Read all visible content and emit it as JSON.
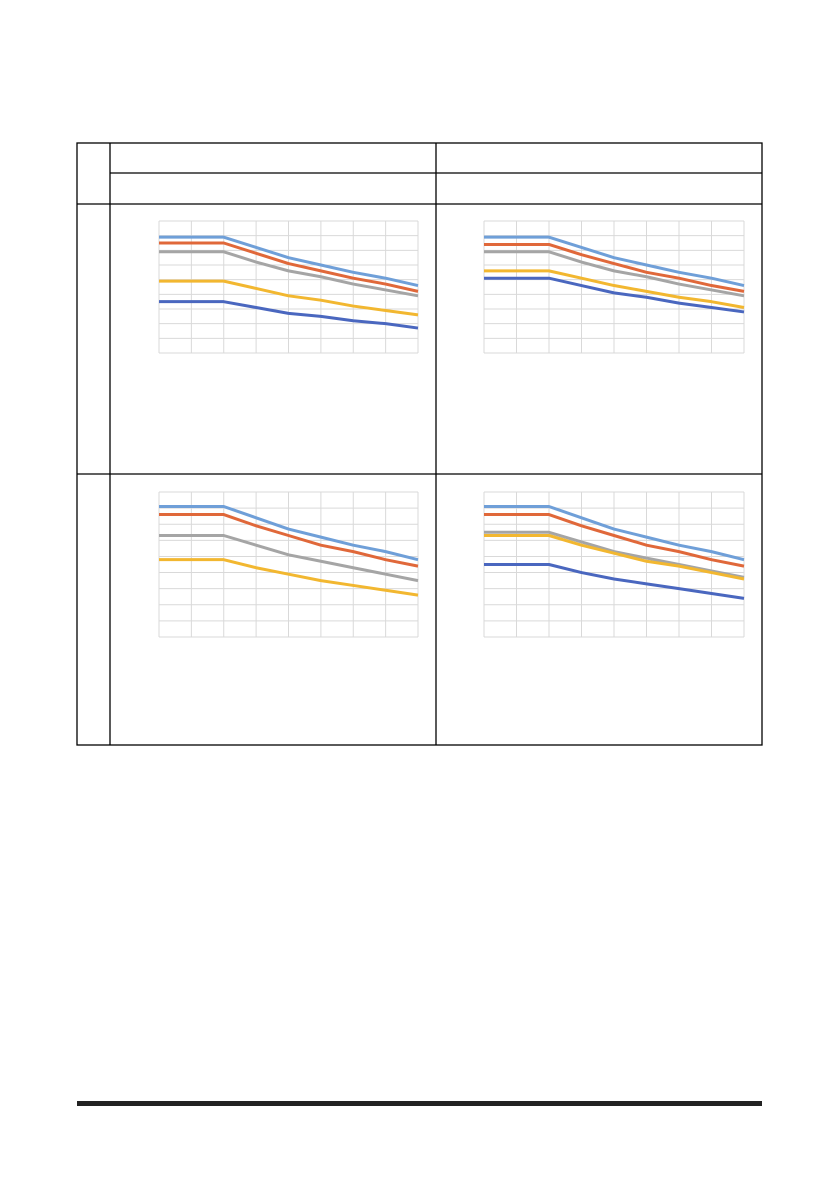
{
  "chart_data": [
    {
      "type": "line",
      "x": [
        0,
        1,
        2,
        3,
        4,
        5,
        6,
        7,
        8
      ],
      "xlim": [
        0,
        8
      ],
      "ylim": [
        0,
        9
      ],
      "xticks": [
        0,
        1,
        2,
        3,
        4,
        5,
        6,
        7,
        8
      ],
      "yticks": [
        0,
        1,
        2,
        3,
        4,
        5,
        6,
        7,
        8,
        9
      ],
      "grid": true,
      "series": [
        {
          "color": "#6f9fd8",
          "values": [
            7.9,
            7.9,
            7.9,
            7.2,
            6.5,
            6.0,
            5.5,
            5.1,
            4.6
          ]
        },
        {
          "color": "#e0683a",
          "values": [
            7.5,
            7.5,
            7.5,
            6.8,
            6.1,
            5.6,
            5.1,
            4.7,
            4.2
          ]
        },
        {
          "color": "#a5a5a5",
          "values": [
            6.9,
            6.9,
            6.9,
            6.2,
            5.6,
            5.2,
            4.7,
            4.3,
            3.9
          ]
        },
        {
          "color": "#f2b730",
          "values": [
            4.9,
            4.9,
            4.9,
            4.4,
            3.9,
            3.6,
            3.2,
            2.9,
            2.6
          ]
        },
        {
          "color": "#4a67bf",
          "values": [
            3.5,
            3.5,
            3.5,
            3.1,
            2.7,
            2.5,
            2.2,
            2.0,
            1.7
          ]
        }
      ]
    },
    {
      "type": "line",
      "x": [
        0,
        1,
        2,
        3,
        4,
        5,
        6,
        7,
        8
      ],
      "xlim": [
        0,
        8
      ],
      "ylim": [
        0,
        9
      ],
      "xticks": [
        0,
        1,
        2,
        3,
        4,
        5,
        6,
        7,
        8
      ],
      "yticks": [
        0,
        1,
        2,
        3,
        4,
        5,
        6,
        7,
        8,
        9
      ],
      "grid": true,
      "series": [
        {
          "color": "#6f9fd8",
          "values": [
            7.9,
            7.9,
            7.9,
            7.2,
            6.5,
            6.0,
            5.5,
            5.1,
            4.6
          ]
        },
        {
          "color": "#e0683a",
          "values": [
            7.4,
            7.4,
            7.4,
            6.7,
            6.1,
            5.5,
            5.1,
            4.6,
            4.2
          ]
        },
        {
          "color": "#a5a5a5",
          "values": [
            6.9,
            6.9,
            6.9,
            6.2,
            5.6,
            5.2,
            4.7,
            4.3,
            3.9
          ]
        },
        {
          "color": "#f2b730",
          "values": [
            5.6,
            5.6,
            5.6,
            5.1,
            4.6,
            4.2,
            3.8,
            3.5,
            3.1
          ]
        },
        {
          "color": "#4a67bf",
          "values": [
            5.1,
            5.1,
            5.1,
            4.6,
            4.1,
            3.8,
            3.4,
            3.1,
            2.8
          ]
        }
      ]
    },
    {
      "type": "line",
      "x": [
        0,
        1,
        2,
        3,
        4,
        5,
        6,
        7,
        8
      ],
      "xlim": [
        0,
        8
      ],
      "ylim": [
        0,
        9
      ],
      "xticks": [
        0,
        1,
        2,
        3,
        4,
        5,
        6,
        7,
        8
      ],
      "yticks": [
        0,
        1,
        2,
        3,
        4,
        5,
        6,
        7,
        8,
        9
      ],
      "grid": true,
      "series": [
        {
          "color": "#6f9fd8",
          "values": [
            8.1,
            8.1,
            8.1,
            7.4,
            6.7,
            6.2,
            5.7,
            5.3,
            4.8
          ]
        },
        {
          "color": "#e0683a",
          "values": [
            7.6,
            7.6,
            7.6,
            6.9,
            6.3,
            5.7,
            5.3,
            4.8,
            4.4
          ]
        },
        {
          "color": "#a5a5a5",
          "values": [
            6.3,
            6.3,
            6.3,
            5.7,
            5.1,
            4.7,
            4.3,
            3.9,
            3.5
          ]
        },
        {
          "color": "#f2b730",
          "values": [
            4.8,
            4.8,
            4.8,
            4.3,
            3.9,
            3.5,
            3.2,
            2.9,
            2.6
          ]
        }
      ]
    },
    {
      "type": "line",
      "x": [
        0,
        1,
        2,
        3,
        4,
        5,
        6,
        7,
        8
      ],
      "xlim": [
        0,
        8
      ],
      "ylim": [
        0,
        9
      ],
      "xticks": [
        0,
        1,
        2,
        3,
        4,
        5,
        6,
        7,
        8
      ],
      "yticks": [
        0,
        1,
        2,
        3,
        4,
        5,
        6,
        7,
        8,
        9
      ],
      "grid": true,
      "series": [
        {
          "color": "#6f9fd8",
          "values": [
            8.1,
            8.1,
            8.1,
            7.4,
            6.7,
            6.2,
            5.7,
            5.3,
            4.8
          ]
        },
        {
          "color": "#e0683a",
          "values": [
            7.6,
            7.6,
            7.6,
            6.9,
            6.3,
            5.7,
            5.3,
            4.8,
            4.4
          ]
        },
        {
          "color": "#a5a5a5",
          "values": [
            6.5,
            6.5,
            6.5,
            5.9,
            5.3,
            4.9,
            4.5,
            4.1,
            3.7
          ]
        },
        {
          "color": "#f2b730",
          "values": [
            6.3,
            6.3,
            6.3,
            5.7,
            5.2,
            4.7,
            4.4,
            4.0,
            3.6
          ]
        },
        {
          "color": "#4a67bf",
          "values": [
            4.5,
            4.5,
            4.5,
            4.0,
            3.6,
            3.3,
            3.0,
            2.7,
            2.4
          ]
        }
      ]
    }
  ]
}
